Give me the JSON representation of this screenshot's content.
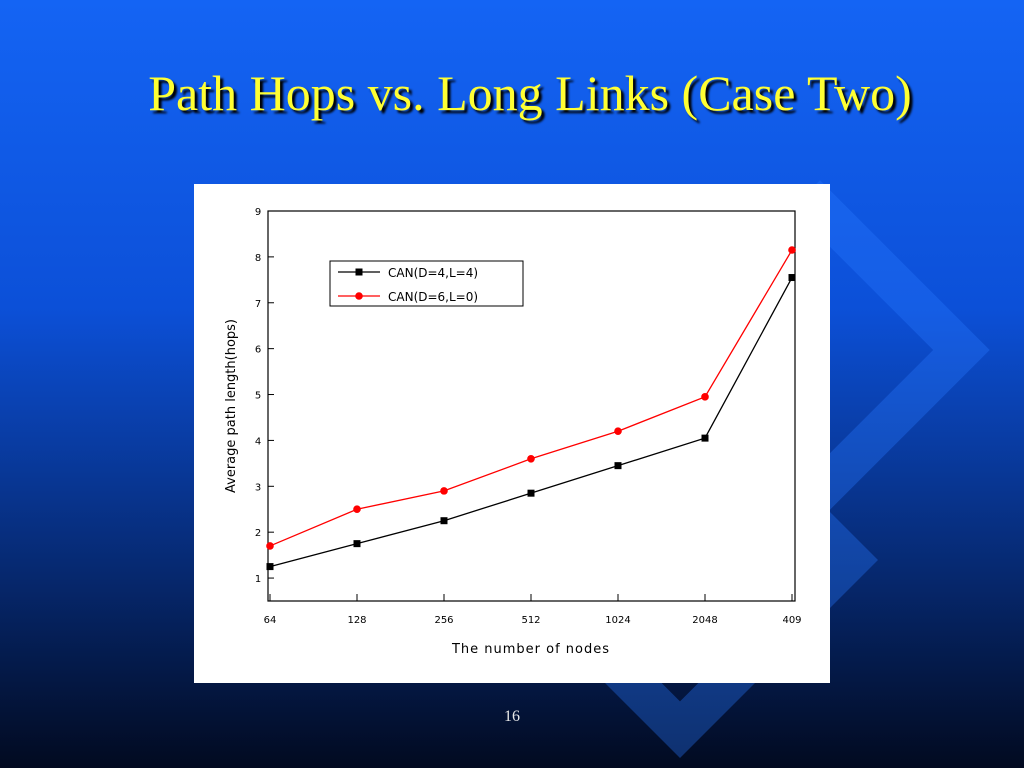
{
  "slide": {
    "title": "Path Hops vs. Long Links (Case Two)",
    "page_number": "16"
  },
  "chart_data": {
    "type": "line",
    "x_label": "The number of nodes",
    "y_label": "Average path length(hops)",
    "categories": [
      "64",
      "128",
      "256",
      "512",
      "1024",
      "2048",
      "409"
    ],
    "series": [
      {
        "name": "CAN(D=4,L=4)",
        "color": "#000000",
        "marker": "square",
        "values": [
          1.25,
          1.75,
          2.25,
          2.85,
          3.45,
          4.05,
          7.55
        ]
      },
      {
        "name": "CAN(D=6,L=0)",
        "color": "#ff0000",
        "marker": "circle",
        "values": [
          1.7,
          2.5,
          2.9,
          3.6,
          4.2,
          4.95,
          8.15
        ]
      }
    ],
    "ylim": [
      0.5,
      9
    ],
    "yticks": [
      1,
      2,
      3,
      4,
      5,
      6,
      7,
      8,
      9
    ],
    "legend": "upper-left"
  }
}
